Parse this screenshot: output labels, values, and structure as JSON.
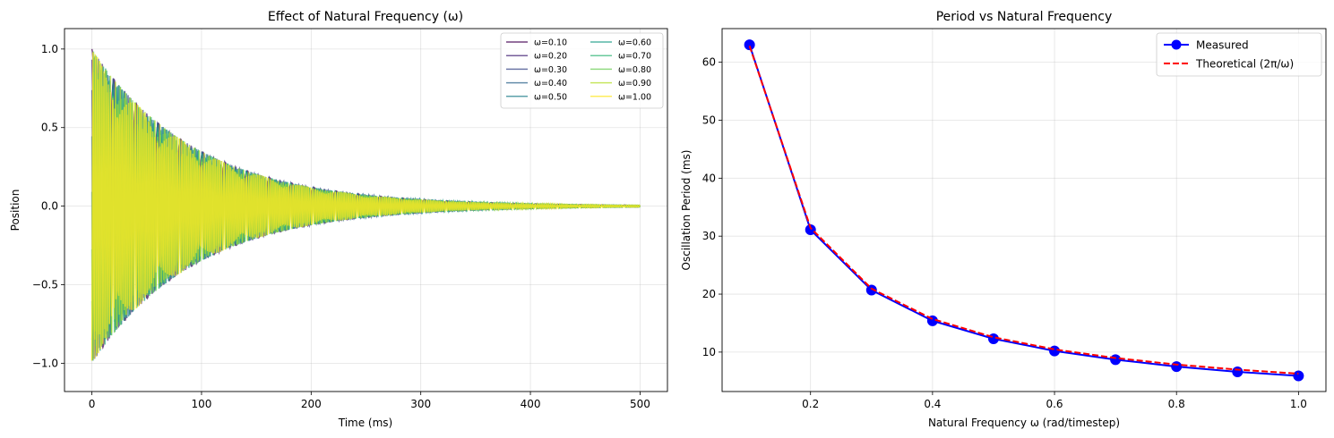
{
  "chart_data": [
    {
      "type": "line",
      "title": "Effect of Natural Frequency (ω)",
      "xlabel": "Time (ms)",
      "ylabel": "Position",
      "xlim": [
        -25,
        525
      ],
      "ylim": [
        -1.18,
        1.13
      ],
      "xticks": [
        0,
        100,
        200,
        300,
        400,
        500
      ],
      "xtick_labels": [
        "0",
        "100",
        "200",
        "300",
        "400",
        "500"
      ],
      "yticks": [
        -1.0,
        -0.5,
        0.0,
        0.5,
        1.0
      ],
      "ytick_labels": [
        "−1.0",
        "−0.5",
        "0.0",
        "0.5",
        "1.0"
      ],
      "grid": true,
      "legend_position": "top-right",
      "legend_columns": 2,
      "duration_ms": 500,
      "series": [
        {
          "name": "ω=0.10",
          "omega": 0.1,
          "amplitude": 1.0,
          "color": "#440154"
        },
        {
          "name": "ω=0.20",
          "omega": 0.2,
          "amplitude": 1.0,
          "color": "#482878"
        },
        {
          "name": "ω=0.30",
          "omega": 0.3,
          "amplitude": 1.0,
          "color": "#3e4989"
        },
        {
          "name": "ω=0.40",
          "omega": 0.4,
          "amplitude": 1.0,
          "color": "#31688e"
        },
        {
          "name": "ω=0.50",
          "omega": 0.5,
          "amplitude": 1.0,
          "color": "#26828e"
        },
        {
          "name": "ω=0.60",
          "omega": 0.6,
          "amplitude": 1.0,
          "color": "#1f9e89"
        },
        {
          "name": "ω=0.70",
          "omega": 0.7,
          "amplitude": 1.0,
          "color": "#35b779"
        },
        {
          "name": "ω=0.80",
          "omega": 0.8,
          "amplitude": 1.0,
          "color": "#6ece58"
        },
        {
          "name": "ω=0.90",
          "omega": 0.9,
          "amplitude": 1.0,
          "color": "#b5de2b"
        },
        {
          "name": "ω=1.00",
          "omega": 1.0,
          "amplitude": 1.0,
          "color": "#fde725"
        }
      ]
    },
    {
      "type": "line",
      "title": "Period vs Natural Frequency",
      "xlabel": "Natural Frequency ω (rad/timestep)",
      "ylabel": "Oscillation Period (ms)",
      "xlim": [
        0.055,
        1.045
      ],
      "ylim": [
        3.2,
        65.8
      ],
      "xticks": [
        0.2,
        0.4,
        0.6,
        0.8,
        1.0
      ],
      "xtick_labels": [
        "0.2",
        "0.4",
        "0.6",
        "0.8",
        "1.0"
      ],
      "yticks": [
        10,
        20,
        30,
        40,
        50,
        60
      ],
      "ytick_labels": [
        "10",
        "20",
        "30",
        "40",
        "50",
        "60"
      ],
      "grid": true,
      "legend_position": "top-right",
      "x": [
        0.1,
        0.2,
        0.3,
        0.4,
        0.5,
        0.6,
        0.7,
        0.8,
        0.9,
        1.0
      ],
      "series": [
        {
          "name": "Measured",
          "color": "#0000ff",
          "style": "solid-markers",
          "values": [
            63.0,
            31.1,
            20.7,
            15.4,
            12.3,
            10.2,
            8.7,
            7.5,
            6.6,
            5.9
          ]
        },
        {
          "name": "Theoretical (2π/ω)",
          "color": "#ff0000",
          "style": "dashed",
          "values": [
            62.83,
            31.42,
            20.94,
            15.71,
            12.57,
            10.47,
            8.98,
            7.85,
            6.98,
            6.28
          ]
        }
      ]
    }
  ]
}
